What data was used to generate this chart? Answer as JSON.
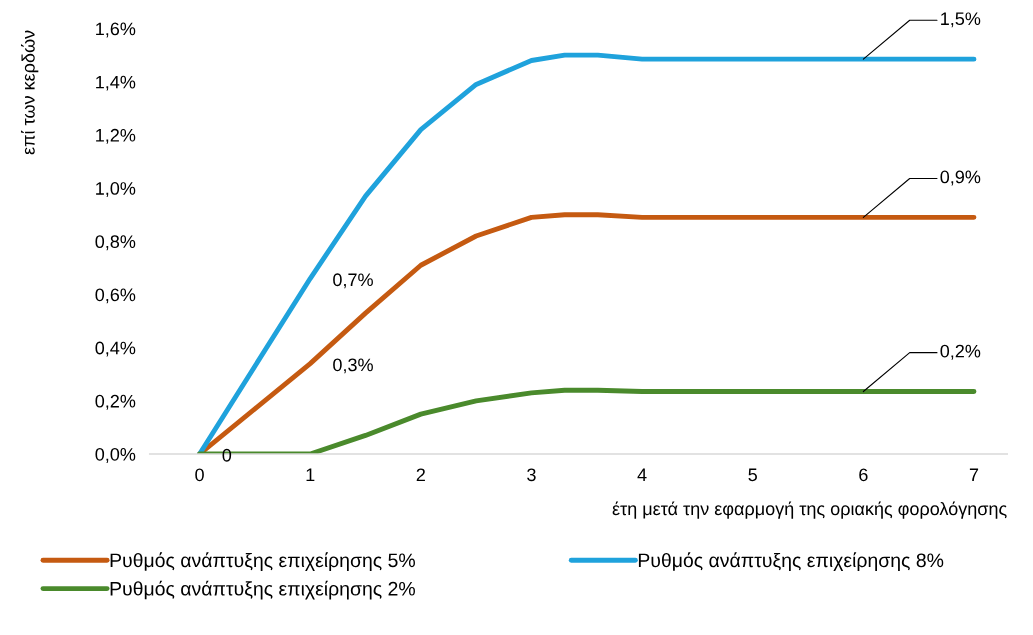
{
  "chart_data": {
    "type": "line",
    "xlabel": "έτη μετά την εφαρμογή της οριακής φορολόγησης",
    "ylabel": "επί των κερδών",
    "x": [
      0,
      0.5,
      1,
      1.5,
      2,
      2.5,
      3,
      3.3,
      3.6,
      4,
      5,
      6,
      7
    ],
    "xlim": [
      -0.45,
      7.3
    ],
    "xticks": [
      0,
      1,
      2,
      3,
      4,
      5,
      6,
      7
    ],
    "ylim": [
      0,
      1.6
    ],
    "yticks": [
      {
        "value": 0,
        "label": "0,0%"
      },
      {
        "value": 0.2,
        "label": "0,2%"
      },
      {
        "value": 0.4,
        "label": "0,4%"
      },
      {
        "value": 0.6,
        "label": "0,6%"
      },
      {
        "value": 0.8,
        "label": "0,8%"
      },
      {
        "value": 1.0,
        "label": "1,0%"
      },
      {
        "value": 1.2,
        "label": "1,2%"
      },
      {
        "value": 1.4,
        "label": "1,4%"
      },
      {
        "value": 1.6,
        "label": "1,6%"
      }
    ],
    "series": [
      {
        "name": "Ρυθμός ανάπτυξης επιχείρησης 5%",
        "color": "#c55a11",
        "values": [
          0,
          0.17,
          0.34,
          0.53,
          0.71,
          0.82,
          0.89,
          0.9,
          0.9,
          0.89,
          0.89,
          0.89,
          0.89
        ],
        "value_labels": [
          null,
          null,
          "0,3%",
          null,
          null,
          null,
          null,
          null,
          null,
          null,
          null,
          "0,9%",
          null
        ]
      },
      {
        "name": "Ρυθμός ανάπτυξης επιχείρησης 8%",
        "color": "#1fa2dc",
        "values": [
          0,
          0.33,
          0.66,
          0.97,
          1.22,
          1.39,
          1.48,
          1.5,
          1.5,
          1.485,
          1.485,
          1.485,
          1.485
        ],
        "value_labels": [
          null,
          null,
          "0,7%",
          null,
          null,
          null,
          null,
          null,
          null,
          null,
          null,
          "1,5%",
          null
        ]
      },
      {
        "name": "Ρυθμός ανάπτυξης επιχείρησης 2%",
        "color": "#4a8a2c",
        "values": [
          0,
          0,
          0,
          0.07,
          0.15,
          0.2,
          0.23,
          0.24,
          0.24,
          0.235,
          0.235,
          0.235,
          0.235
        ],
        "value_labels": [
          "0",
          null,
          null,
          null,
          null,
          null,
          null,
          null,
          null,
          null,
          null,
          "0,2%",
          null
        ]
      }
    ],
    "legend": "bottom",
    "grid": false,
    "marker": "none",
    "line_style": "solid"
  }
}
